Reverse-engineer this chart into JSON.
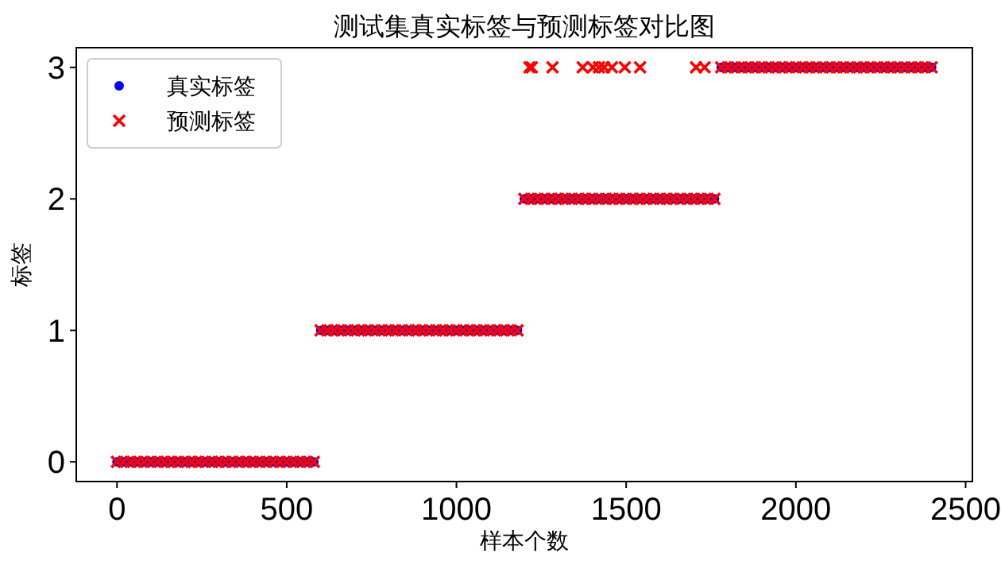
{
  "chart_data": {
    "type": "scatter",
    "title": "测试集真实标签与预测标签对比图",
    "xlabel": "样本个数",
    "ylabel": "标签",
    "xlim": [
      -120,
      2520
    ],
    "ylim": [
      -0.15,
      3.15
    ],
    "xticks": [
      0,
      500,
      1000,
      1500,
      2000,
      2500
    ],
    "yticks": [
      0,
      1,
      2,
      3
    ],
    "legend": "top left",
    "series": [
      {
        "name": "真实标签",
        "color": "#0000ff",
        "marker": "circle",
        "x": [
          0,
          20,
          40,
          60,
          80,
          100,
          120,
          140,
          160,
          180,
          200,
          220,
          240,
          260,
          280,
          300,
          320,
          340,
          360,
          380,
          400,
          420,
          440,
          460,
          480,
          500,
          520,
          540,
          560,
          580,
          600,
          620,
          640,
          660,
          680,
          700,
          720,
          740,
          760,
          780,
          800,
          820,
          840,
          860,
          880,
          900,
          920,
          940,
          960,
          980,
          1000,
          1020,
          1040,
          1060,
          1080,
          1100,
          1120,
          1140,
          1160,
          1180,
          1200,
          1220,
          1240,
          1260,
          1280,
          1300,
          1320,
          1340,
          1360,
          1380,
          1400,
          1420,
          1440,
          1460,
          1480,
          1500,
          1520,
          1540,
          1560,
          1580,
          1600,
          1620,
          1640,
          1660,
          1680,
          1700,
          1720,
          1740,
          1760,
          1780,
          1800,
          1820,
          1840,
          1860,
          1880,
          1900,
          1920,
          1940,
          1960,
          1980,
          2000,
          2020,
          2040,
          2060,
          2080,
          2100,
          2120,
          2140,
          2160,
          2180,
          2200,
          2220,
          2240,
          2260,
          2280,
          2300,
          2320,
          2340,
          2360,
          2380,
          2400
        ],
        "values": [
          0,
          0,
          0,
          0,
          0,
          0,
          0,
          0,
          0,
          0,
          0,
          0,
          0,
          0,
          0,
          0,
          0,
          0,
          0,
          0,
          0,
          0,
          0,
          0,
          0,
          0,
          0,
          0,
          0,
          0,
          1,
          1,
          1,
          1,
          1,
          1,
          1,
          1,
          1,
          1,
          1,
          1,
          1,
          1,
          1,
          1,
          1,
          1,
          1,
          1,
          1,
          1,
          1,
          1,
          1,
          1,
          1,
          1,
          1,
          1,
          2,
          2,
          2,
          2,
          2,
          2,
          2,
          2,
          2,
          2,
          2,
          2,
          2,
          2,
          2,
          2,
          2,
          2,
          2,
          2,
          2,
          2,
          2,
          2,
          2,
          2,
          2,
          2,
          2,
          3,
          3,
          3,
          3,
          3,
          3,
          3,
          3,
          3,
          3,
          3,
          3,
          3,
          3,
          3,
          3,
          3,
          3,
          3,
          3,
          3,
          3,
          3,
          3,
          3,
          3,
          3,
          3,
          3,
          3,
          3,
          3
        ]
      },
      {
        "name": "预测标签",
        "color": "#ff0000",
        "marker": "cross",
        "x": [
          0,
          20,
          40,
          60,
          80,
          100,
          120,
          140,
          160,
          180,
          200,
          220,
          240,
          260,
          280,
          300,
          320,
          340,
          360,
          380,
          400,
          420,
          440,
          460,
          480,
          500,
          520,
          540,
          560,
          580,
          600,
          620,
          640,
          660,
          680,
          700,
          720,
          740,
          760,
          780,
          800,
          820,
          840,
          860,
          880,
          900,
          920,
          940,
          960,
          980,
          1000,
          1020,
          1040,
          1060,
          1080,
          1100,
          1120,
          1140,
          1160,
          1180,
          1200,
          1220,
          1240,
          1260,
          1280,
          1300,
          1320,
          1340,
          1360,
          1380,
          1400,
          1420,
          1440,
          1460,
          1480,
          1500,
          1520,
          1540,
          1560,
          1580,
          1600,
          1620,
          1640,
          1660,
          1680,
          1700,
          1720,
          1740,
          1760,
          1780,
          1800,
          1820,
          1840,
          1860,
          1880,
          1900,
          1920,
          1940,
          1960,
          1980,
          2000,
          2020,
          2040,
          2060,
          2080,
          2100,
          2120,
          2140,
          2160,
          2180,
          2200,
          2220,
          2240,
          2260,
          2280,
          2300,
          2320,
          2340,
          2360,
          2380,
          2400,
          1215,
          1222,
          1283,
          1372,
          1402,
          1420,
          1435,
          1458,
          1496,
          1541,
          1706,
          1731
        ],
        "values": [
          0,
          0,
          0,
          0,
          0,
          0,
          0,
          0,
          0,
          0,
          0,
          0,
          0,
          0,
          0,
          0,
          0,
          0,
          0,
          0,
          0,
          0,
          0,
          0,
          0,
          0,
          0,
          0,
          0,
          0,
          1,
          1,
          1,
          1,
          1,
          1,
          1,
          1,
          1,
          1,
          1,
          1,
          1,
          1,
          1,
          1,
          1,
          1,
          1,
          1,
          1,
          1,
          1,
          1,
          1,
          1,
          1,
          1,
          1,
          1,
          2,
          2,
          2,
          2,
          2,
          2,
          2,
          2,
          2,
          2,
          2,
          2,
          2,
          2,
          2,
          2,
          2,
          2,
          2,
          2,
          2,
          2,
          2,
          2,
          2,
          2,
          2,
          2,
          2,
          3,
          3,
          3,
          3,
          3,
          3,
          3,
          3,
          3,
          3,
          3,
          3,
          3,
          3,
          3,
          3,
          3,
          3,
          3,
          3,
          3,
          3,
          3,
          3,
          3,
          3,
          3,
          3,
          3,
          3,
          3,
          3,
          3,
          3,
          3,
          3,
          3,
          3,
          3,
          3,
          3,
          3,
          3,
          3
        ]
      }
    ]
  }
}
